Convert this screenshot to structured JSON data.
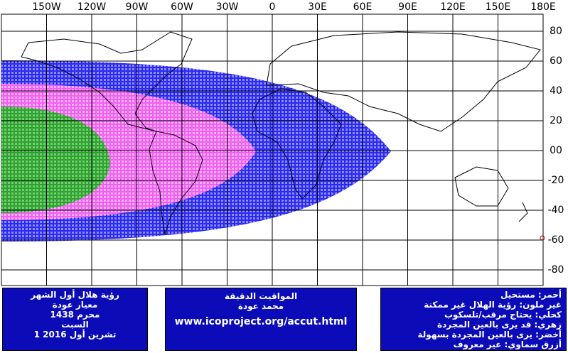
{
  "map": {
    "lon_labels": [
      "150W",
      "120W",
      "90W",
      "60W",
      "30W",
      "0",
      "30E",
      "60E",
      "90E",
      "120E",
      "150E",
      "180E"
    ],
    "lat_labels": [
      "80",
      "60",
      "40",
      "20",
      "00",
      "-20",
      "-40",
      "-60",
      "-80"
    ]
  },
  "boxes": {
    "left": [
      "رؤية هلال أول الشهر",
      "معيار عودة",
      "محرم 1438",
      "السبت",
      "1 تشرين أول 2016"
    ],
    "middle": [
      "المواقيت الدقيقة",
      "محمد عودة",
      "www.icoproject.org/accut.html"
    ],
    "right": [
      "أحمر: مستحيل",
      "غير ملون: رؤية الهلال غير ممكنة",
      "كحلي: يحتاج مرقب/تلسكوب",
      "زهري: قد يرى بالعين المجردة",
      "أخضر: يرى بالعين المجردة بسهولة",
      "أزرق سماوي: غير معروف"
    ]
  }
}
